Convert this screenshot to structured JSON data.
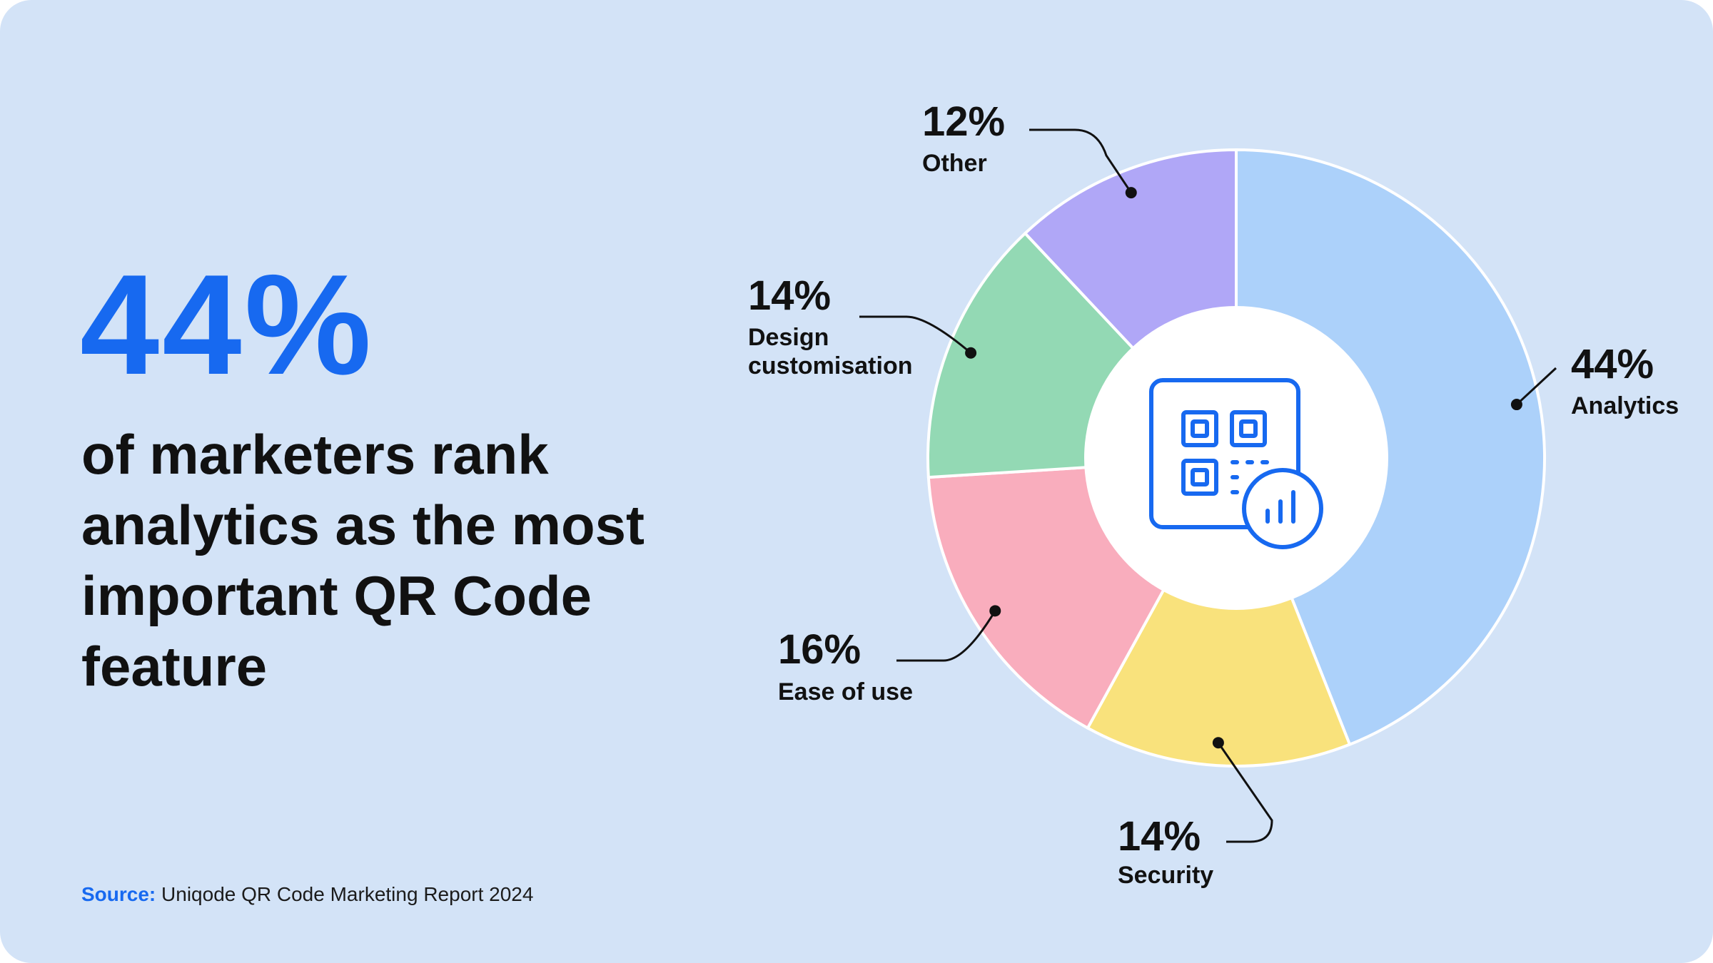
{
  "headline": {
    "stat": "44%",
    "text": "of marketers rank analytics as the most important QR Code feature"
  },
  "source": {
    "label": "Source:",
    "text": "Uniqode QR Code Marketing Report 2024"
  },
  "colors": {
    "accent": "#1769f0",
    "background": "#d3e3f7"
  },
  "center_icon": "qr-code-analytics-icon",
  "chart_data": {
    "type": "pie",
    "style": "donut",
    "start_angle_deg": 0,
    "direction": "clockwise",
    "slices": [
      {
        "name": "Analytics",
        "value": 44,
        "label": "44%",
        "color": "#acd1fa",
        "label_side": "right"
      },
      {
        "name": "Security",
        "value": 14,
        "label": "14%",
        "color": "#f9e27c",
        "label_side": "bottom"
      },
      {
        "name": "Ease of use",
        "value": 16,
        "label": "16%",
        "color": "#f9adbd",
        "label_side": "left"
      },
      {
        "name": "Design customisation",
        "value": 14,
        "label": "14%",
        "color": "#93d9b4",
        "label_side": "left"
      },
      {
        "name": "Other",
        "value": 12,
        "label": "12%",
        "color": "#b0a7f7",
        "label_side": "top"
      }
    ]
  }
}
